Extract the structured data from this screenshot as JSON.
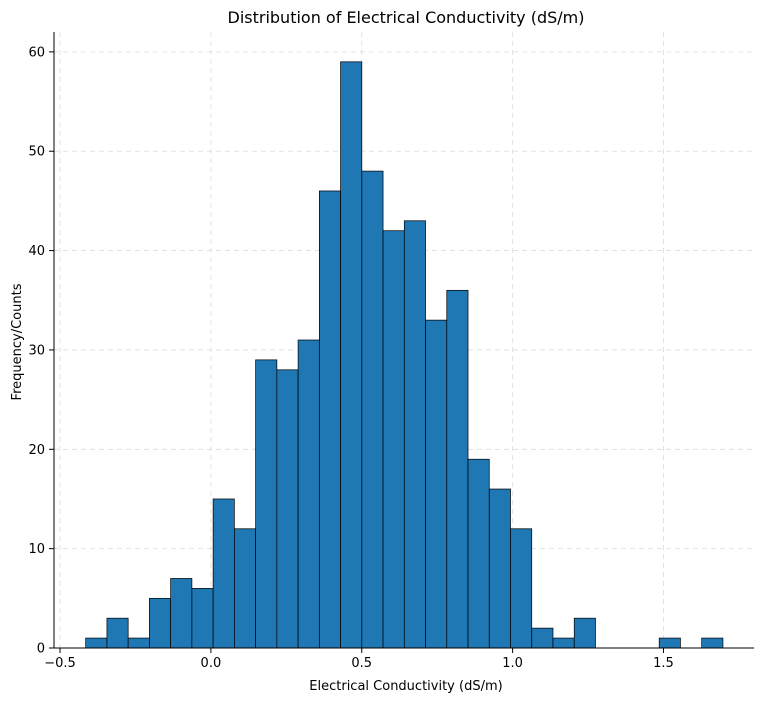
{
  "chart_data": {
    "type": "bar",
    "title": "Distribution of Electrical Conductivity (dS/m)",
    "xlabel": "Electrical Conductivity (dS/m)",
    "ylabel": "Frequency/Counts",
    "xlim": [
      -0.52,
      1.8
    ],
    "ylim": [
      0,
      62
    ],
    "xticks": [
      -0.5,
      0.0,
      0.5,
      1.0,
      1.5
    ],
    "xtick_labels": [
      "−0.5",
      "0.0",
      "0.5",
      "1.0",
      "1.5"
    ],
    "yticks": [
      0,
      10,
      20,
      30,
      40,
      50,
      60
    ],
    "ytick_labels": [
      "0",
      "10",
      "20",
      "30",
      "40",
      "50",
      "60"
    ],
    "grid": true,
    "bar_color": "#1f77b4",
    "edge_color": "#000000",
    "bin_start": -0.415,
    "bin_width": 0.0704,
    "values": [
      1,
      3,
      1,
      5,
      7,
      6,
      15,
      12,
      29,
      28,
      31,
      46,
      59,
      48,
      42,
      43,
      33,
      36,
      19,
      16,
      12,
      2,
      1,
      3,
      0,
      0,
      0,
      1,
      0,
      1
    ]
  }
}
